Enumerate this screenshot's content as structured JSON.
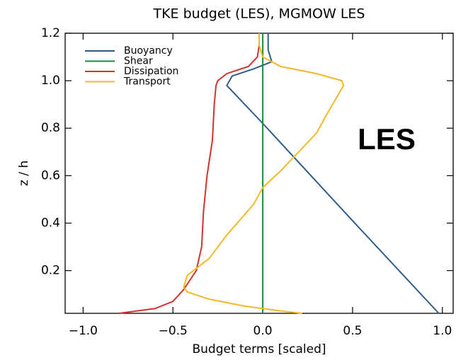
{
  "chart_data": {
    "type": "line",
    "title": "TKE budget (LES), MGMOW LES",
    "x_label": "Budget terms [scaled]",
    "y_label": "z / h",
    "annotation": "LES",
    "xlim": [
      -1.1,
      1.06
    ],
    "ylim": [
      0.02,
      1.2
    ],
    "xticks": [
      {
        "value": -1.0,
        "label": "−1.0"
      },
      {
        "value": -0.5,
        "label": "−0.5"
      },
      {
        "value": 0.0,
        "label": "0.0"
      },
      0.5,
      {
        "value": 1.0,
        "label": "1.0"
      }
    ],
    "yticks": [
      0.2,
      0.4,
      0.6,
      0.8,
      {
        "value": 1.0,
        "label": "1.0"
      },
      1.2
    ],
    "legend": "top-left",
    "series": [
      {
        "name": "Buoyancy",
        "color": "#2f5d8a",
        "x": [
          0.98,
          0.5,
          0.0,
          -0.15,
          -0.2,
          -0.17,
          -0.05,
          0.05,
          0.03,
          0.03
        ],
        "y": [
          0.02,
          0.41,
          0.82,
          0.94,
          0.98,
          1.02,
          1.05,
          1.08,
          1.13,
          1.2
        ]
      },
      {
        "name": "Shear",
        "color": "#1a8a3a",
        "x": [
          0.0,
          0.0
        ],
        "y": [
          0.02,
          1.2
        ]
      },
      {
        "name": "Dissipation",
        "color": "#d0342c",
        "x": [
          -0.8,
          -0.6,
          -0.5,
          -0.44,
          -0.37,
          -0.34,
          -0.33,
          -0.31,
          -0.28,
          -0.27,
          -0.26,
          -0.25,
          -0.2,
          -0.08,
          -0.03,
          -0.02,
          -0.02
        ],
        "y": [
          0.02,
          0.04,
          0.07,
          0.12,
          0.2,
          0.3,
          0.45,
          0.6,
          0.75,
          0.9,
          0.98,
          1.0,
          1.03,
          1.06,
          1.1,
          1.15,
          1.2
        ]
      },
      {
        "name": "Transport",
        "color": "#f5b829",
        "x": [
          0.22,
          0.1,
          -0.1,
          -0.3,
          -0.42,
          -0.44,
          -0.42,
          -0.3,
          -0.2,
          -0.05,
          0.0,
          0.1,
          0.2,
          0.3,
          0.35,
          0.45,
          0.44,
          0.3,
          0.1,
          0.0,
          -0.02,
          -0.02
        ],
        "y": [
          0.02,
          0.03,
          0.05,
          0.08,
          0.11,
          0.13,
          0.18,
          0.25,
          0.35,
          0.48,
          0.55,
          0.62,
          0.7,
          0.78,
          0.85,
          0.98,
          1.0,
          1.03,
          1.06,
          1.1,
          1.15,
          1.2
        ]
      }
    ]
  }
}
